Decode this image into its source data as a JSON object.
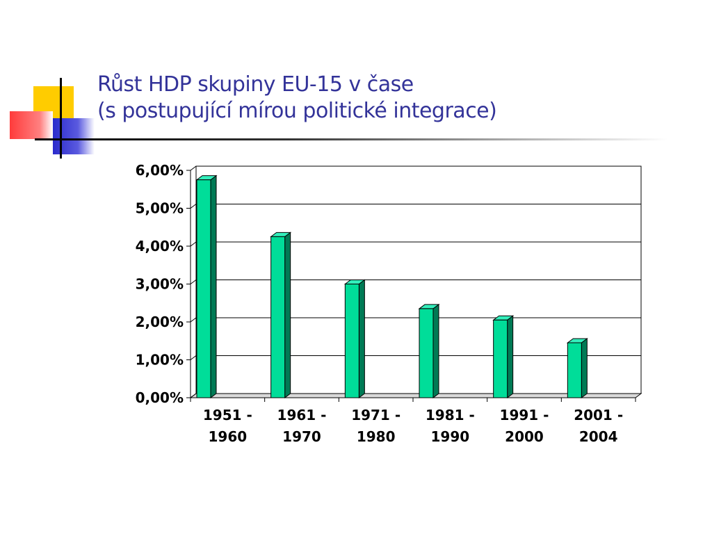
{
  "slide": {
    "title_line1": "Růst HDP skupiny EU-15 v čase",
    "title_line2": "(s postupující mírou politické integrace)",
    "colors": {
      "title": "#333399",
      "accent_yellow": "#ffcc00",
      "accent_red": "#ff3333",
      "accent_blue": "#3333cc"
    }
  },
  "chart_data": {
    "type": "bar",
    "categories": [
      [
        "1951 -",
        "1960"
      ],
      [
        "1961 -",
        "1970"
      ],
      [
        "1971 -",
        "1980"
      ],
      [
        "1981 -",
        "1990"
      ],
      [
        "1991 -",
        "2000"
      ],
      [
        "2001 -",
        "2004"
      ]
    ],
    "values": [
      5.75,
      4.25,
      3.0,
      2.35,
      2.05,
      1.45
    ],
    "ylim": [
      0,
      6
    ],
    "yticks": [
      "0,00%",
      "1,00%",
      "2,00%",
      "3,00%",
      "4,00%",
      "5,00%",
      "6,00%"
    ],
    "title": "",
    "xlabel": "",
    "ylabel": "",
    "grid": true,
    "legend": "none",
    "bar_color": "#00dd99",
    "bar_side_color": "#007a55",
    "bar_top_color": "#33eebb"
  }
}
